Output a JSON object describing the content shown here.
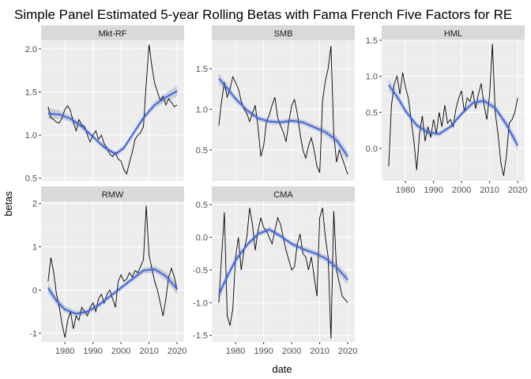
{
  "title": "Simple Panel Estimated 5-year Rolling Betas with Fama French Five Factors for RE",
  "xlabel": "date",
  "ylabel": "betas",
  "colors": {
    "panel_bg": "#EBEBEB",
    "strip_bg": "#D9D9D9",
    "grid_major": "#FFFFFF",
    "grid_minor": "#F5F5F5",
    "beta_line": "#000000",
    "smooth_line": "#3366FF",
    "ribbon": "#999999",
    "tick_text": "#4D4D4D",
    "strip_text": "#1A1A1A"
  },
  "chart_data": {
    "type": "line",
    "facet_layout": "3 columns, independent y scales per panel, shared x axis",
    "x_ticks": [
      "1980",
      "1990",
      "2000",
      "2010",
      "2020"
    ],
    "x_range": [
      1971.5,
      2022.5
    ],
    "panels": [
      {
        "name": "Mkt-RF",
        "ylim": [
          0.47,
          2.1
        ],
        "y_ticks": [
          "0.5",
          "1.0",
          "1.5",
          "2.0"
        ],
        "beta_series": {
          "x": [
            1974,
            1975,
            1976,
            1977,
            1978,
            1979,
            1980,
            1981,
            1982,
            1983,
            1984,
            1985,
            1986,
            1987,
            1988,
            1989,
            1990,
            1991,
            1992,
            1993,
            1994,
            1995,
            1996,
            1997,
            1998,
            1999,
            2000,
            2001,
            2002,
            2003,
            2004,
            2005,
            2006,
            2007,
            2008,
            2009,
            2010,
            2011,
            2012,
            2013,
            2014,
            2015,
            2016,
            2017,
            2018,
            2019,
            2020
          ],
          "y": [
            1.33,
            1.2,
            1.18,
            1.15,
            1.14,
            1.2,
            1.3,
            1.34,
            1.28,
            1.15,
            1.05,
            1.18,
            1.12,
            1.1,
            1.0,
            0.92,
            1.0,
            1.05,
            0.95,
            1.0,
            0.9,
            0.85,
            0.78,
            0.75,
            0.8,
            0.72,
            0.7,
            0.6,
            0.55,
            0.68,
            0.8,
            0.95,
            1.0,
            1.03,
            1.1,
            1.6,
            2.05,
            1.8,
            1.6,
            1.5,
            1.4,
            1.45,
            1.35,
            1.42,
            1.38,
            1.33,
            1.35
          ]
        },
        "smooth_series": {
          "x": [
            1974,
            1978,
            1982,
            1986,
            1990,
            1994,
            1998,
            2001,
            2004,
            2008,
            2012,
            2016,
            2020
          ],
          "y": [
            1.25,
            1.24,
            1.19,
            1.1,
            0.98,
            0.86,
            0.78,
            0.85,
            1.0,
            1.2,
            1.35,
            1.44,
            1.51
          ]
        }
      },
      {
        "name": "SMB",
        "ylim": [
          0.12,
          1.85
        ],
        "y_ticks": [
          "0.5",
          "1.0",
          "1.5"
        ],
        "beta_series": {
          "x": [
            1974,
            1975,
            1976,
            1977,
            1978,
            1979,
            1980,
            1981,
            1982,
            1983,
            1984,
            1985,
            1986,
            1987,
            1988,
            1989,
            1990,
            1991,
            1992,
            1993,
            1994,
            1995,
            1996,
            1997,
            1998,
            1999,
            2000,
            2001,
            2002,
            2003,
            2004,
            2005,
            2006,
            2007,
            2008,
            2009,
            2010,
            2011,
            2012,
            2013,
            2014,
            2015,
            2016,
            2017,
            2018,
            2019,
            2020
          ],
          "y": [
            0.8,
            1.1,
            1.33,
            1.15,
            1.25,
            1.4,
            1.33,
            1.25,
            1.1,
            1.0,
            0.95,
            0.85,
            0.95,
            1.05,
            0.78,
            0.42,
            0.55,
            0.85,
            0.93,
            1.05,
            1.15,
            0.9,
            0.8,
            0.72,
            0.6,
            0.85,
            1.05,
            1.12,
            0.95,
            0.7,
            0.5,
            0.4,
            0.55,
            0.65,
            0.5,
            0.3,
            0.22,
            1.1,
            1.35,
            1.5,
            1.78,
            0.7,
            0.35,
            0.5,
            0.4,
            0.3,
            0.2
          ]
        },
        "smooth_series": {
          "x": [
            1974,
            1977,
            1980,
            1984,
            1988,
            1992,
            1996,
            2000,
            2004,
            2008,
            2012,
            2016,
            2020
          ],
          "y": [
            1.38,
            1.26,
            1.13,
            0.99,
            0.89,
            0.85,
            0.84,
            0.86,
            0.84,
            0.78,
            0.72,
            0.62,
            0.42
          ]
        }
      },
      {
        "name": "HML",
        "ylim": [
          -0.45,
          1.5
        ],
        "y_ticks": [
          "0.0",
          "0.5",
          "1.0",
          "1.5"
        ],
        "beta_series": {
          "x": [
            1974,
            1975,
            1976,
            1977,
            1978,
            1979,
            1980,
            1981,
            1982,
            1983,
            1984,
            1985,
            1986,
            1987,
            1988,
            1989,
            1990,
            1991,
            1992,
            1993,
            1994,
            1995,
            1996,
            1997,
            1998,
            1999,
            2000,
            2001,
            2002,
            2003,
            2004,
            2005,
            2006,
            2007,
            2008,
            2009,
            2010,
            2011,
            2012,
            2013,
            2014,
            2015,
            2016,
            2017,
            2018,
            2019,
            2020
          ],
          "y": [
            -0.25,
            0.6,
            0.9,
            1.0,
            0.75,
            1.05,
            0.85,
            0.7,
            0.4,
            0.1,
            -0.3,
            0.2,
            0.45,
            0.1,
            0.3,
            0.15,
            0.4,
            0.2,
            0.5,
            0.3,
            0.6,
            0.35,
            0.4,
            0.3,
            0.55,
            0.7,
            0.8,
            0.5,
            0.7,
            0.65,
            0.8,
            0.55,
            0.75,
            0.9,
            0.6,
            0.4,
            0.75,
            1.45,
            0.5,
            0.2,
            -0.2,
            -0.38,
            -0.1,
            0.35,
            0.4,
            0.5,
            0.7
          ]
        },
        "smooth_series": {
          "x": [
            1974,
            1977,
            1980,
            1984,
            1988,
            1992,
            1996,
            2000,
            2004,
            2008,
            2012,
            2016,
            2020
          ],
          "y": [
            0.88,
            0.72,
            0.52,
            0.32,
            0.22,
            0.2,
            0.3,
            0.48,
            0.63,
            0.66,
            0.56,
            0.33,
            0.04
          ]
        }
      },
      {
        "name": "RMW",
        "ylim": [
          -1.2,
          2.05
        ],
        "y_ticks": [
          "-1",
          "0",
          "1",
          "2"
        ],
        "beta_series": {
          "x": [
            1974,
            1975,
            1976,
            1977,
            1978,
            1979,
            1980,
            1981,
            1982,
            1983,
            1984,
            1985,
            1986,
            1987,
            1988,
            1989,
            1990,
            1991,
            1992,
            1993,
            1994,
            1995,
            1996,
            1997,
            1998,
            1999,
            2000,
            2001,
            2002,
            2003,
            2004,
            2005,
            2006,
            2007,
            2008,
            2009,
            2010,
            2011,
            2012,
            2013,
            2014,
            2015,
            2016,
            2017,
            2018,
            2019,
            2020
          ],
          "y": [
            0.2,
            0.75,
            0.4,
            -0.1,
            -0.4,
            -0.8,
            -1.1,
            -0.7,
            -0.5,
            -0.9,
            -0.6,
            -0.7,
            -0.4,
            -0.5,
            -0.6,
            -0.4,
            -0.3,
            -0.5,
            -0.2,
            -0.1,
            -0.3,
            -0.1,
            0.0,
            -0.2,
            -0.4,
            0.2,
            0.35,
            0.2,
            0.25,
            0.4,
            0.3,
            0.45,
            0.4,
            0.55,
            0.7,
            1.95,
            0.8,
            0.5,
            0.2,
            0.0,
            -0.3,
            -0.6,
            -0.2,
            0.3,
            0.5,
            0.3,
            0.0
          ]
        },
        "smooth_series": {
          "x": [
            1974,
            1977,
            1980,
            1984,
            1988,
            1992,
            1996,
            2000,
            2004,
            2008,
            2012,
            2016,
            2020
          ],
          "y": [
            0.05,
            -0.25,
            -0.45,
            -0.55,
            -0.5,
            -0.35,
            -0.15,
            0.05,
            0.25,
            0.45,
            0.48,
            0.32,
            0.02
          ]
        }
      },
      {
        "name": "CMA",
        "ylim": [
          -1.6,
          0.55
        ],
        "y_ticks": [
          "-1.5",
          "-1.0",
          "-0.5",
          "0.0",
          "0.5"
        ],
        "beta_series": {
          "x": [
            1974,
            1975,
            1976,
            1977,
            1978,
            1979,
            1980,
            1981,
            1982,
            1983,
            1984,
            1985,
            1986,
            1987,
            1988,
            1989,
            1990,
            1991,
            1992,
            1993,
            1994,
            1995,
            1996,
            1997,
            1998,
            1999,
            2000,
            2001,
            2002,
            2003,
            2004,
            2005,
            2006,
            2007,
            2008,
            2009,
            2010,
            2011,
            2012,
            2013,
            2014,
            2015,
            2016,
            2017,
            2018,
            2019,
            2020
          ],
          "y": [
            -1.0,
            -0.3,
            0.38,
            -1.2,
            -1.35,
            -1.1,
            -0.3,
            0.0,
            -0.5,
            -0.2,
            0.0,
            0.45,
            0.2,
            -0.2,
            0.1,
            0.3,
            0.15,
            0.1,
            0.0,
            -0.1,
            0.1,
            0.3,
            0.2,
            0.0,
            -0.2,
            -0.35,
            -0.5,
            -0.45,
            -0.1,
            0.05,
            -0.25,
            -0.3,
            -0.5,
            -0.3,
            -0.6,
            -0.9,
            0.3,
            0.45,
            0.0,
            -0.3,
            -1.55,
            0.4,
            -0.5,
            -0.7,
            -0.9,
            -0.95,
            -1.0
          ]
        },
        "smooth_series": {
          "x": [
            1974,
            1977,
            1980,
            1984,
            1988,
            1992,
            1996,
            2000,
            2004,
            2008,
            2012,
            2016,
            2020
          ],
          "y": [
            -0.88,
            -0.6,
            -0.35,
            -0.12,
            0.05,
            0.12,
            0.02,
            -0.1,
            -0.18,
            -0.24,
            -0.32,
            -0.46,
            -0.65
          ]
        }
      }
    ]
  }
}
